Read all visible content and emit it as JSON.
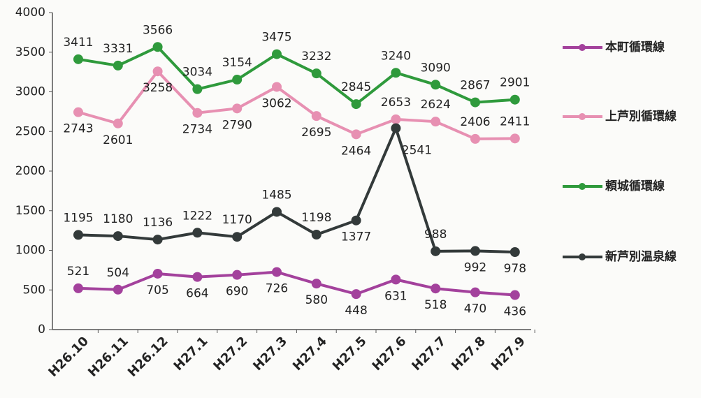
{
  "chart_data": {
    "type": "line",
    "categories": [
      "H26.10",
      "H26.11",
      "H26.12",
      "H27.1",
      "H27.2",
      "H27.3",
      "H27.4",
      "H27.5",
      "H27.6",
      "H27.7",
      "H27.8",
      "H27.9"
    ],
    "series": [
      {
        "name": "本町循環線",
        "color": "#a3419c",
        "values": [
          521,
          504,
          705,
          664,
          690,
          726,
          580,
          448,
          631,
          518,
          470,
          436
        ]
      },
      {
        "name": "上芦別循環線",
        "color": "#e790b2",
        "values": [
          2743,
          2601,
          3258,
          2734,
          2790,
          3062,
          2695,
          2464,
          2653,
          2624,
          2406,
          2411
        ]
      },
      {
        "name": "頼城循環線",
        "color": "#2f9a3c",
        "values": [
          3411,
          3331,
          3566,
          3034,
          3154,
          3475,
          3232,
          2845,
          3240,
          3090,
          2867,
          2901
        ]
      },
      {
        "name": "新芦別温泉線",
        "color": "#333a3a",
        "values": [
          1195,
          1180,
          1136,
          1222,
          1170,
          1485,
          1198,
          1377,
          2541,
          988,
          992,
          978
        ]
      }
    ],
    "ylim": [
      0,
      4000
    ],
    "yticks": [
      0,
      500,
      1000,
      1500,
      2000,
      2500,
      3000,
      3500,
      4000
    ],
    "grid": false,
    "legend": "right"
  }
}
